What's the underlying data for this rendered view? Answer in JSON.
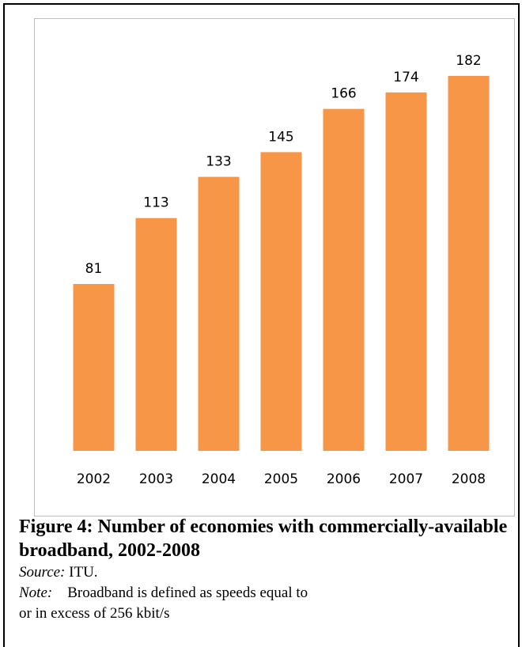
{
  "chart_data": {
    "type": "bar",
    "categories": [
      "2002",
      "2003",
      "2004",
      "2005",
      "2006",
      "2007",
      "2008"
    ],
    "values": [
      81,
      113,
      133,
      145,
      166,
      174,
      182
    ],
    "title": "",
    "xlabel": "",
    "ylabel": "",
    "ylim": [
      0,
      200
    ],
    "grid": false,
    "legend": "none",
    "bar_color": "#f79646",
    "data_labels": true
  },
  "caption": {
    "title": "Figure 4: Number of economies with commercially-available broadband, 2002-2008",
    "source_key": "Source:",
    "source_text": "ITU.",
    "note_key": "Note:",
    "note_line1": "Broadband is defined as speeds equal to",
    "note_line2": "or in excess of 256 kbit/s"
  }
}
